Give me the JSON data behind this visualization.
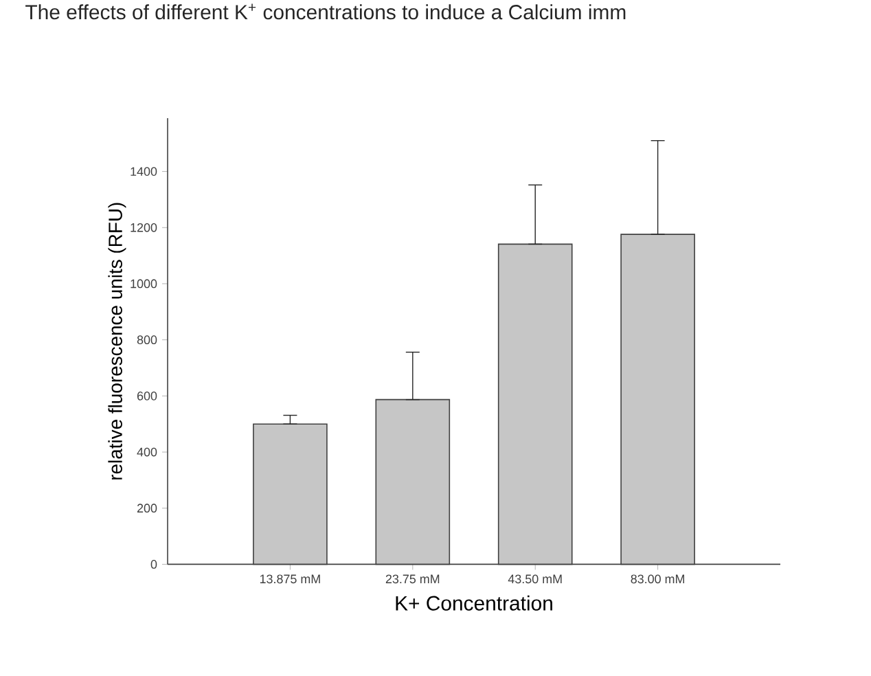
{
  "chart_data": {
    "type": "bar",
    "title": "The effects of different K$^{+}$ concentrations to induce a Calcium imm",
    "xlabel": "K+ Concentration",
    "ylabel": "relative fluorescence units (RFU)",
    "categories": [
      "13.875 mM",
      "23.75 mM",
      "43.50 mM",
      "83.00 mM"
    ],
    "values": [
      500,
      587,
      1141,
      1176
    ],
    "errors": [
      [
        500,
        531
      ],
      [
        587,
        756
      ],
      [
        1141,
        1352
      ],
      [
        1176,
        1510
      ]
    ],
    "color": "#c6c6c6",
    "ylim": [
      0,
      1590
    ],
    "yticks": [
      0,
      200,
      400,
      600,
      800,
      1000,
      1200,
      1400
    ],
    "grid": false
  }
}
